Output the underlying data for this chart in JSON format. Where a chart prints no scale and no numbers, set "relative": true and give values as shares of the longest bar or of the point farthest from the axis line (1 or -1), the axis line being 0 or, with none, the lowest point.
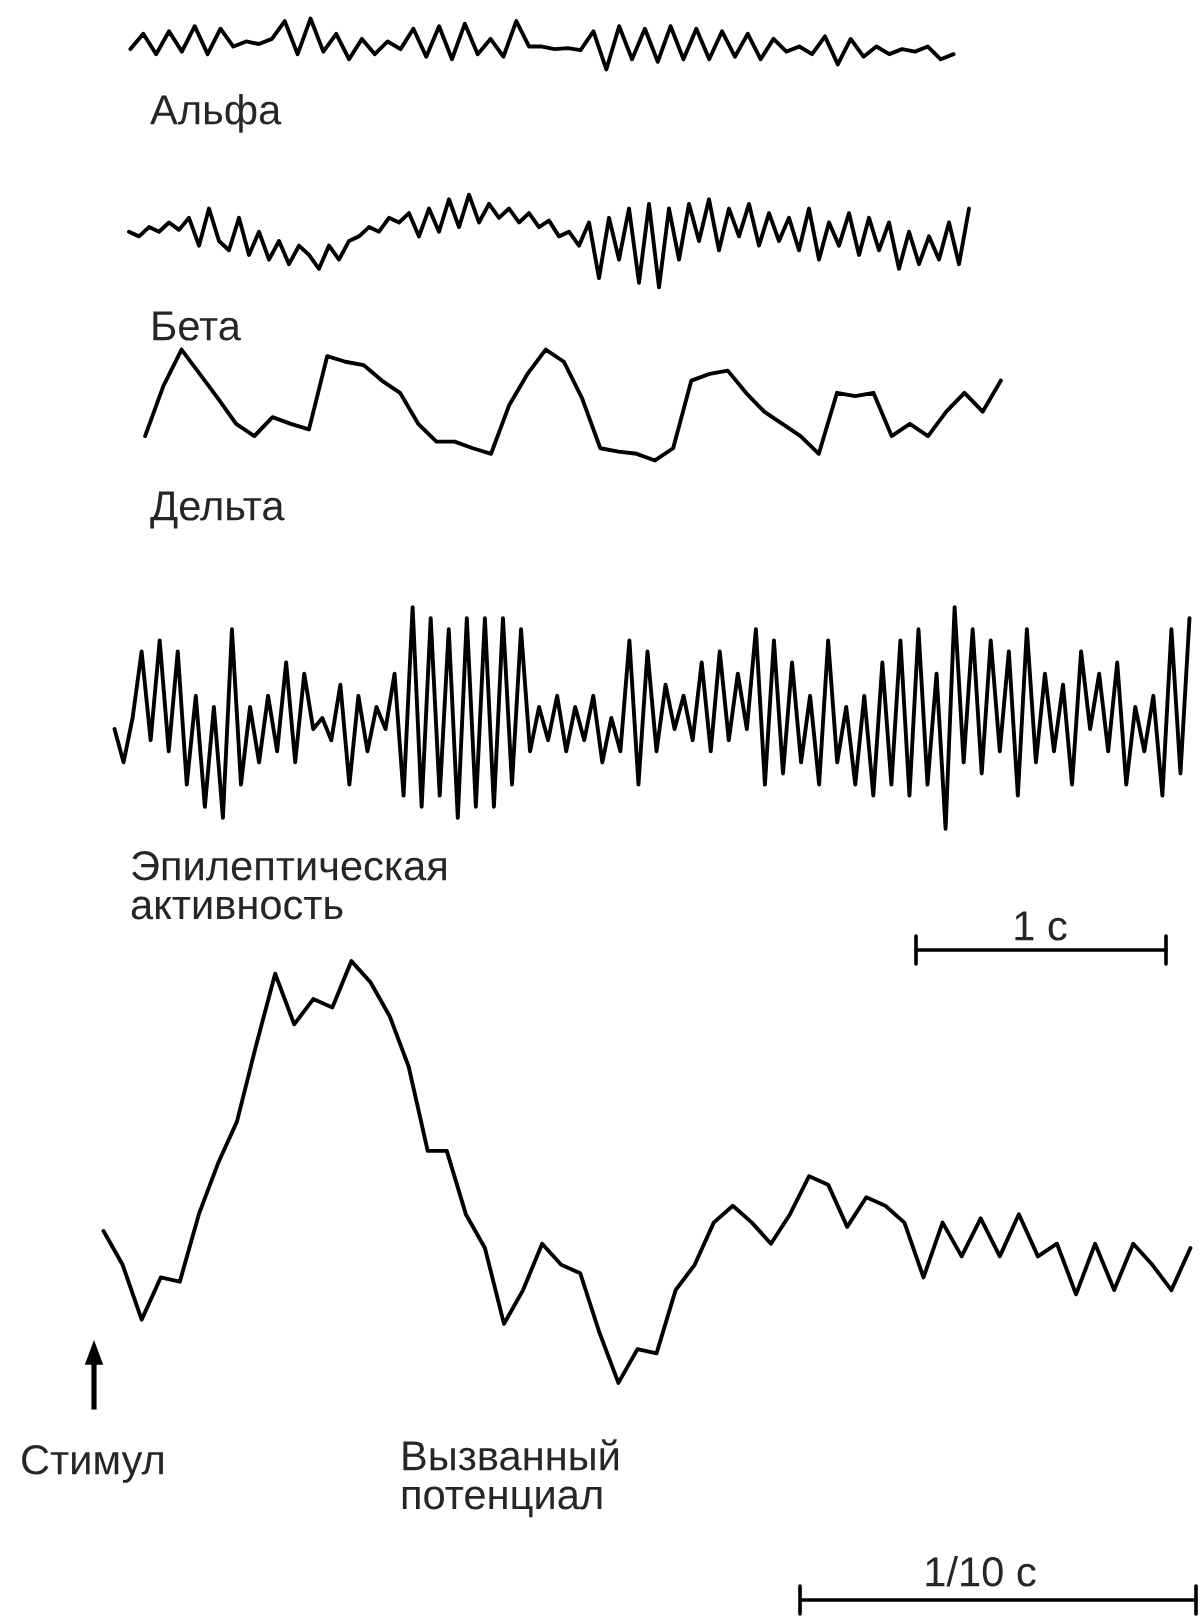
{
  "chart_data": [
    {
      "type": "line",
      "relative": true,
      "annotations": [
        "Альфа"
      ],
      "categories": [
        null,
        null,
        null,
        null,
        null,
        null,
        null,
        null,
        null,
        null,
        null,
        null,
        null,
        null,
        null,
        null,
        null,
        null,
        null,
        null,
        null,
        null,
        null,
        null,
        null,
        null,
        null,
        null,
        null,
        null,
        null,
        null,
        null,
        null,
        null,
        null,
        null,
        null,
        null,
        null,
        null,
        null,
        null,
        null,
        null,
        null,
        null,
        null,
        null,
        null,
        null,
        null,
        null,
        null,
        null,
        null,
        null,
        null,
        null,
        null,
        null,
        null,
        null,
        null,
        null
      ],
      "series": [
        {
          "color": "#000000",
          "values": [
            0.4,
            0.7,
            0.3,
            0.75,
            0.35,
            0.85,
            0.3,
            0.8,
            0.45,
            0.55,
            0.5,
            0.6,
            0.95,
            0.3,
            1.0,
            0.35,
            0.7,
            0.2,
            0.6,
            0.3,
            0.55,
            0.4,
            0.8,
            0.25,
            0.85,
            0.2,
            0.9,
            0.3,
            0.6,
            0.25,
            0.95,
            0.45,
            0.45,
            0.4,
            0.42,
            0.38,
            0.75,
            0.0,
            0.85,
            0.2,
            0.8,
            0.15,
            0.85,
            0.2,
            0.8,
            0.2,
            0.75,
            0.25,
            0.7,
            0.2,
            0.6,
            0.35,
            0.45,
            0.3,
            0.65,
            0.1,
            0.6,
            0.25,
            0.45,
            0.3,
            0.4,
            0.35,
            0.45,
            0.2,
            0.3
          ]
        }
      ]
    },
    {
      "type": "line",
      "relative": true,
      "annotations": [
        "Бета"
      ],
      "categories": [
        null,
        null,
        null,
        null,
        null,
        null,
        null,
        null,
        null,
        null,
        null,
        null,
        null,
        null,
        null,
        null,
        null,
        null,
        null,
        null,
        null,
        null,
        null,
        null,
        null,
        null,
        null,
        null,
        null,
        null,
        null,
        null,
        null,
        null,
        null,
        null,
        null,
        null,
        null,
        null,
        null,
        null,
        null,
        null,
        null,
        null,
        null,
        null,
        null,
        null,
        null,
        null,
        null,
        null,
        null,
        null,
        null,
        null,
        null,
        null,
        null,
        null,
        null,
        null,
        null,
        null,
        null,
        null,
        null,
        null,
        null,
        null,
        null,
        null,
        null,
        null,
        null,
        null,
        null,
        null,
        null,
        null,
        null,
        null,
        null
      ],
      "series": [
        {
          "color": "#000000",
          "values": [
            0.6,
            0.55,
            0.65,
            0.6,
            0.7,
            0.62,
            0.75,
            0.45,
            0.85,
            0.5,
            0.4,
            0.75,
            0.35,
            0.6,
            0.3,
            0.5,
            0.25,
            0.45,
            0.35,
            0.2,
            0.45,
            0.3,
            0.5,
            0.55,
            0.65,
            0.6,
            0.75,
            0.7,
            0.8,
            0.55,
            0.85,
            0.6,
            0.95,
            0.65,
            1.0,
            0.7,
            0.9,
            0.75,
            0.85,
            0.7,
            0.8,
            0.65,
            0.72,
            0.55,
            0.6,
            0.45,
            0.7,
            0.1,
            0.75,
            0.3,
            0.85,
            0.05,
            0.9,
            0.0,
            0.85,
            0.3,
            0.9,
            0.5,
            0.95,
            0.4,
            0.85,
            0.55,
            0.9,
            0.45,
            0.8,
            0.5,
            0.75,
            0.4,
            0.85,
            0.3,
            0.7,
            0.45,
            0.8,
            0.35,
            0.75,
            0.4,
            0.7,
            0.2,
            0.6,
            0.25,
            0.55,
            0.3,
            0.7,
            0.25,
            0.85
          ]
        }
      ]
    },
    {
      "type": "line",
      "relative": true,
      "annotations": [
        "Дельта"
      ],
      "categories": [
        null,
        null,
        null,
        null,
        null,
        null,
        null,
        null,
        null,
        null,
        null,
        null,
        null,
        null,
        null,
        null,
        null,
        null,
        null,
        null,
        null,
        null,
        null,
        null,
        null,
        null,
        null,
        null,
        null,
        null,
        null,
        null,
        null,
        null,
        null,
        null,
        null,
        null,
        null,
        null,
        null,
        null,
        null,
        null,
        null,
        null,
        null,
        null
      ],
      "series": [
        {
          "color": "#000000",
          "values": [
            0.22,
            0.67,
            1.0,
            0.78,
            0.56,
            0.33,
            0.22,
            0.39,
            0.33,
            0.28,
            0.94,
            0.89,
            0.86,
            0.72,
            0.61,
            0.33,
            0.17,
            0.17,
            0.11,
            0.06,
            0.5,
            0.78,
            1.0,
            0.89,
            0.56,
            0.11,
            0.08,
            0.06,
            0.0,
            0.11,
            0.72,
            0.78,
            0.81,
            0.61,
            0.44,
            0.33,
            0.22,
            0.06,
            0.61,
            0.58,
            0.61,
            0.22,
            0.33,
            0.22,
            0.44,
            0.61,
            0.44,
            0.72
          ]
        }
      ]
    },
    {
      "type": "line",
      "relative": true,
      "annotations": [
        "Эпилептическая\nактивность",
        "1 с"
      ],
      "categories": [
        null,
        null,
        null,
        null,
        null,
        null,
        null,
        null,
        null,
        null,
        null,
        null,
        null,
        null,
        null,
        null,
        null,
        null,
        null,
        null,
        null,
        null,
        null,
        null,
        null,
        null,
        null,
        null,
        null,
        null,
        null,
        null,
        null,
        null,
        null,
        null,
        null,
        null,
        null,
        null,
        null,
        null,
        null,
        null,
        null,
        null,
        null,
        null,
        null,
        null,
        null,
        null,
        null,
        null,
        null,
        null,
        null,
        null,
        null,
        null,
        null,
        null,
        null,
        null,
        null,
        null,
        null,
        null,
        null,
        null,
        null,
        null,
        null,
        null,
        null,
        null,
        null,
        null,
        null,
        null,
        null,
        null,
        null,
        null,
        null,
        null,
        null,
        null,
        null,
        null,
        null,
        null,
        null,
        null,
        null,
        null,
        null,
        null,
        null,
        null,
        null,
        null,
        null,
        null,
        null,
        null,
        null,
        null,
        null,
        null,
        null,
        null,
        null,
        null,
        null,
        null,
        null,
        null,
        null,
        null
      ],
      "series": [
        {
          "color": "#000000",
          "values": [
            0.45,
            0.3,
            0.5,
            0.8,
            0.4,
            0.85,
            0.35,
            0.8,
            0.2,
            0.6,
            0.1,
            0.55,
            0.05,
            0.9,
            0.2,
            0.55,
            0.3,
            0.6,
            0.35,
            0.75,
            0.3,
            0.7,
            0.45,
            0.5,
            0.4,
            0.65,
            0.2,
            0.6,
            0.35,
            0.55,
            0.45,
            0.7,
            0.15,
            1.0,
            0.1,
            0.95,
            0.15,
            0.9,
            0.05,
            0.95,
            0.1,
            0.95,
            0.1,
            0.95,
            0.2,
            0.9,
            0.35,
            0.55,
            0.4,
            0.6,
            0.35,
            0.55,
            0.4,
            0.6,
            0.3,
            0.5,
            0.35,
            0.85,
            0.2,
            0.8,
            0.35,
            0.65,
            0.45,
            0.6,
            0.4,
            0.75,
            0.35,
            0.8,
            0.4,
            0.7,
            0.45,
            0.9,
            0.2,
            0.85,
            0.25,
            0.75,
            0.3,
            0.6,
            0.2,
            0.85,
            0.3,
            0.55,
            0.2,
            0.6,
            0.15,
            0.75,
            0.2,
            0.85,
            0.15,
            0.9,
            0.2,
            0.7,
            0.0,
            1.0,
            0.3,
            0.9,
            0.25,
            0.85,
            0.35,
            0.8,
            0.15,
            0.9,
            0.3,
            0.7,
            0.35,
            0.65,
            0.2,
            0.8,
            0.45,
            0.7,
            0.35,
            0.75,
            0.2,
            0.55,
            0.35,
            0.6,
            0.15,
            0.9,
            0.25,
            0.95
          ]
        }
      ]
    },
    {
      "type": "line",
      "relative": true,
      "annotations": [
        "Стимул",
        "Вызванный\nпотенциал",
        "1/10 с"
      ],
      "categories": [
        null,
        null,
        null,
        null,
        null,
        null,
        null,
        null,
        null,
        null,
        null,
        null,
        null,
        null,
        null,
        null,
        null,
        null,
        null,
        null,
        null,
        null,
        null,
        null,
        null,
        null,
        null,
        null,
        null,
        null,
        null,
        null,
        null,
        null,
        null,
        null,
        null,
        null,
        null,
        null,
        null,
        null,
        null,
        null,
        null,
        null,
        null,
        null,
        null,
        null,
        null,
        null,
        null,
        null,
        null,
        null,
        null,
        null
      ],
      "series": [
        {
          "color": "#000000",
          "values": [
            0.36,
            0.28,
            0.15,
            0.25,
            0.24,
            0.4,
            0.52,
            0.62,
            0.8,
            0.97,
            0.85,
            0.91,
            0.89,
            1.0,
            0.95,
            0.87,
            0.75,
            0.55,
            0.55,
            0.4,
            0.32,
            0.14,
            0.22,
            0.33,
            0.28,
            0.26,
            0.12,
            0.0,
            0.08,
            0.07,
            0.22,
            0.28,
            0.38,
            0.42,
            0.38,
            0.33,
            0.4,
            0.49,
            0.47,
            0.37,
            0.44,
            0.42,
            0.38,
            0.25,
            0.38,
            0.3,
            0.39,
            0.3,
            0.4,
            0.3,
            0.33,
            0.21,
            0.33,
            0.22,
            0.33,
            0.28,
            0.22,
            0.32
          ]
        }
      ]
    }
  ]
}
